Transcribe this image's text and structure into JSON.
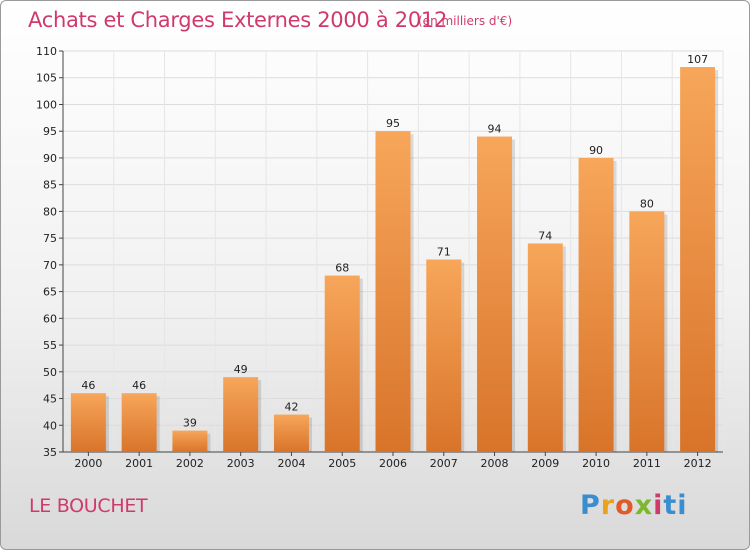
{
  "title": "Achats et Charges Externes 2000 à 2012",
  "unit_note": "(en milliers d'€)",
  "commune": "LE BOUCHET",
  "logo": "Proxiti",
  "colors": {
    "bar_top": "#f7a65a",
    "bar_bottom": "#d8742a",
    "title": "#d03a6a"
  },
  "chart_data": {
    "type": "bar",
    "title": "Achats et Charges Externes 2000 à 2012",
    "categories": [
      "2000",
      "2001",
      "2002",
      "2003",
      "2004",
      "2005",
      "2006",
      "2007",
      "2008",
      "2009",
      "2010",
      "2011",
      "2012"
    ],
    "values": [
      46,
      46,
      39,
      49,
      42,
      68,
      95,
      71,
      94,
      74,
      90,
      80,
      107
    ],
    "ylim": [
      35,
      110
    ],
    "yticks": [
      35,
      40,
      45,
      50,
      55,
      60,
      65,
      70,
      75,
      80,
      85,
      90,
      95,
      100,
      105,
      110
    ],
    "grid": true
  }
}
